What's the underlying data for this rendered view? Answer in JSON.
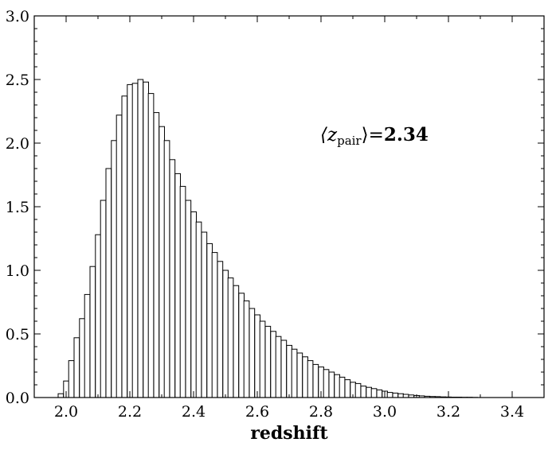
{
  "chart_data": {
    "type": "bar",
    "title": "",
    "xlabel": "redshift",
    "ylabel": "",
    "xlim": [
      1.9,
      3.5
    ],
    "ylim": [
      0.0,
      3.0
    ],
    "grid": false,
    "x_ticks": [
      {
        "value": 2.0,
        "label": "2.0"
      },
      {
        "value": 2.2,
        "label": "2.2"
      },
      {
        "value": 2.4,
        "label": "2.4"
      },
      {
        "value": 2.6,
        "label": "2.6"
      },
      {
        "value": 2.8,
        "label": "2.8"
      },
      {
        "value": 3.0,
        "label": "3.0"
      },
      {
        "value": 3.2,
        "label": "3.2"
      },
      {
        "value": 3.4,
        "label": "3.4"
      }
    ],
    "y_ticks": [
      {
        "value": 0.0,
        "label": "0.0"
      },
      {
        "value": 0.5,
        "label": "0.5"
      },
      {
        "value": 1.0,
        "label": "1.0"
      },
      {
        "value": 1.5,
        "label": "1.5"
      },
      {
        "value": 2.0,
        "label": "2.0"
      },
      {
        "value": 2.5,
        "label": "2.5"
      },
      {
        "value": 3.0,
        "label": "3.0"
      }
    ],
    "bin_width": 0.0167,
    "bin_left_edges": [
      1.975,
      1.992,
      2.008,
      2.025,
      2.042,
      2.058,
      2.075,
      2.092,
      2.108,
      2.125,
      2.142,
      2.158,
      2.175,
      2.192,
      2.208,
      2.225,
      2.242,
      2.258,
      2.275,
      2.292,
      2.308,
      2.325,
      2.342,
      2.358,
      2.375,
      2.392,
      2.408,
      2.425,
      2.442,
      2.458,
      2.475,
      2.492,
      2.508,
      2.525,
      2.542,
      2.558,
      2.575,
      2.592,
      2.608,
      2.625,
      2.642,
      2.658,
      2.675,
      2.692,
      2.708,
      2.725,
      2.742,
      2.758,
      2.775,
      2.792,
      2.808,
      2.825,
      2.842,
      2.858,
      2.875,
      2.892,
      2.908,
      2.925,
      2.942,
      2.958,
      2.975,
      2.992,
      3.008,
      3.025,
      3.042,
      3.058,
      3.075,
      3.092,
      3.108,
      3.125,
      3.142,
      3.158,
      3.175,
      3.192,
      3.208,
      3.225,
      3.242,
      3.258,
      3.275
    ],
    "values": [
      0.03,
      0.13,
      0.29,
      0.47,
      0.62,
      0.81,
      1.03,
      1.28,
      1.55,
      1.8,
      2.02,
      2.22,
      2.37,
      2.46,
      2.47,
      2.5,
      2.48,
      2.39,
      2.24,
      2.13,
      2.02,
      1.87,
      1.76,
      1.66,
      1.55,
      1.46,
      1.38,
      1.3,
      1.21,
      1.14,
      1.07,
      1.0,
      0.94,
      0.88,
      0.82,
      0.76,
      0.7,
      0.65,
      0.6,
      0.56,
      0.52,
      0.48,
      0.45,
      0.41,
      0.38,
      0.35,
      0.32,
      0.29,
      0.26,
      0.24,
      0.22,
      0.2,
      0.18,
      0.16,
      0.14,
      0.12,
      0.11,
      0.09,
      0.08,
      0.07,
      0.06,
      0.05,
      0.04,
      0.035,
      0.03,
      0.025,
      0.02,
      0.016,
      0.013,
      0.01,
      0.008,
      0.007,
      0.005,
      0.004,
      0.003,
      0.003,
      0.002,
      0.002,
      0.001
    ],
    "annotation": {
      "math_prefix": "⟨z",
      "subscript": "pair",
      "math_suffix": "⟩",
      "equals": "=",
      "value": "2.34"
    }
  }
}
